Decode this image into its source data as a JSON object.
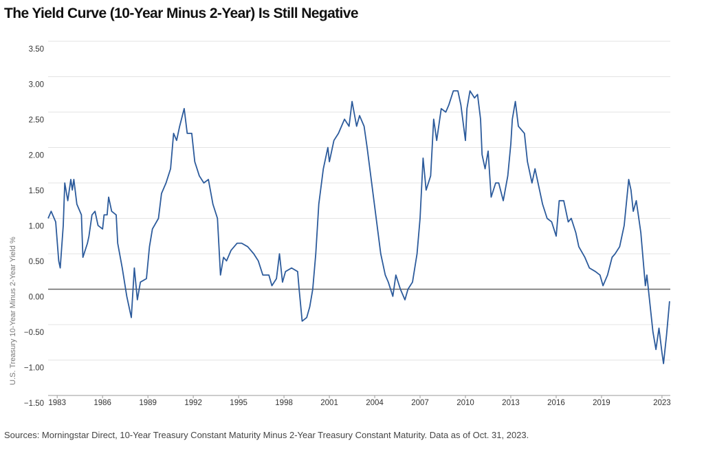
{
  "chart_data": {
    "type": "line",
    "title": "The Yield Curve (10-Year Minus 2-Year) Is Still Negative",
    "y_label": "U.S. Treasury 10-Year Minus 2-Year Yield %",
    "source": "Sources: Morningstar Direct, 10-Year Treasury Constant Maturity Minus 2-Year Treasury Constant Maturity. Data as of Oct. 31, 2023.",
    "xlim": [
      1982.4,
      2023.55
    ],
    "xticks": [
      1983,
      1986,
      1989,
      1992,
      1995,
      1998,
      2001,
      2004,
      2007,
      2010,
      2013,
      2016,
      2019,
      2023
    ],
    "ylim": [
      -1.5,
      3.5
    ],
    "yticks": [
      {
        "value": -1.5,
        "label": "−1.50"
      },
      {
        "value": -1,
        "label": "−1.00"
      },
      {
        "value": -0.5,
        "label": "−0.50"
      },
      {
        "value": 0,
        "label": "0.00"
      },
      {
        "value": 0.5,
        "label": "0.50"
      },
      {
        "value": 1,
        "label": "1.00"
      },
      {
        "value": 1.5,
        "label": "1.50"
      },
      {
        "value": 2,
        "label": "2.00"
      },
      {
        "value": 2.5,
        "label": "2.50"
      },
      {
        "value": 3,
        "label": "3.00"
      },
      {
        "value": 3.5,
        "label": "3.50"
      }
    ],
    "grid": true,
    "x": [
      1982.4,
      1982.6,
      1982.9,
      1983.1,
      1983.2,
      1983.4,
      1983.5,
      1983.7,
      1983.9,
      1984.0,
      1984.1,
      1984.3,
      1984.6,
      1984.7,
      1985.0,
      1985.1,
      1985.3,
      1985.5,
      1985.7,
      1986.0,
      1986.1,
      1986.3,
      1986.4,
      1986.6,
      1986.9,
      1987.0,
      1987.3,
      1987.6,
      1987.9,
      1988.1,
      1988.3,
      1988.5,
      1988.9,
      1989.1,
      1989.3,
      1989.7,
      1989.9,
      1990.2,
      1990.5,
      1990.7,
      1990.9,
      1991.1,
      1991.4,
      1991.6,
      1991.9,
      1992.1,
      1992.4,
      1992.7,
      1993.0,
      1993.3,
      1993.6,
      1993.8,
      1994.0,
      1994.2,
      1994.5,
      1994.9,
      1995.2,
      1995.6,
      1996.0,
      1996.3,
      1996.6,
      1997.0,
      1997.2,
      1997.5,
      1997.7,
      1997.9,
      1998.1,
      1998.5,
      1998.9,
      1999.0,
      1999.2,
      1999.5,
      1999.7,
      1999.9,
      2000.1,
      2000.3,
      2000.6,
      2000.9,
      2001.0,
      2001.3,
      2001.6,
      2001.8,
      2002.0,
      2002.3,
      2002.5,
      2002.8,
      2003.0,
      2003.3,
      2003.5,
      2003.8,
      2004.1,
      2004.4,
      2004.7,
      2004.9,
      2005.2,
      2005.4,
      2005.7,
      2006.0,
      2006.2,
      2006.5,
      2006.8,
      2007.0,
      2007.2,
      2007.4,
      2007.7,
      2007.9,
      2008.1,
      2008.4,
      2008.7,
      2008.9,
      2009.2,
      2009.5,
      2009.7,
      2010.0,
      2010.1,
      2010.3,
      2010.6,
      2010.8,
      2011.0,
      2011.1,
      2011.3,
      2011.5,
      2011.7,
      2012.0,
      2012.2,
      2012.5,
      2012.8,
      2013.0,
      2013.1,
      2013.3,
      2013.5,
      2013.9,
      2014.1,
      2014.4,
      2014.6,
      2014.9,
      2015.1,
      2015.4,
      2015.7,
      2016.0,
      2016.2,
      2016.5,
      2016.8,
      2017.0,
      2017.3,
      2017.5,
      2017.9,
      2018.2,
      2018.6,
      2018.9,
      2019.1,
      2019.4,
      2019.7,
      2019.9,
      2020.2,
      2020.5,
      2020.8,
      2020.95,
      2021.1,
      2021.3,
      2021.6,
      2021.9,
      2022.0,
      2022.2,
      2022.4,
      2022.6,
      2022.8,
      2023.0,
      2023.1,
      2023.3,
      2023.5
    ],
    "series": [
      {
        "color": "#2b5a9b",
        "values": [
          1.0,
          1.1,
          0.95,
          0.4,
          0.3,
          0.9,
          1.5,
          1.25,
          1.55,
          1.4,
          1.55,
          1.2,
          1.05,
          0.45,
          0.65,
          0.75,
          1.05,
          1.1,
          0.9,
          0.85,
          1.05,
          1.05,
          1.3,
          1.1,
          1.05,
          0.65,
          0.3,
          -0.1,
          -0.4,
          0.3,
          -0.15,
          0.1,
          0.15,
          0.6,
          0.85,
          1.0,
          1.35,
          1.5,
          1.7,
          2.2,
          2.1,
          2.3,
          2.55,
          2.2,
          2.2,
          1.8,
          1.6,
          1.5,
          1.55,
          1.2,
          1.0,
          0.2,
          0.45,
          0.4,
          0.55,
          0.65,
          0.65,
          0.6,
          0.5,
          0.4,
          0.2,
          0.2,
          0.05,
          0.15,
          0.5,
          0.1,
          0.25,
          0.3,
          0.25,
          0.0,
          -0.45,
          -0.4,
          -0.25,
          0.0,
          0.5,
          1.2,
          1.7,
          2.0,
          1.8,
          2.1,
          2.2,
          2.3,
          2.4,
          2.3,
          2.65,
          2.3,
          2.45,
          2.3,
          2.0,
          1.5,
          1.0,
          0.5,
          0.2,
          0.1,
          -0.1,
          0.2,
          0.0,
          -0.15,
          0.0,
          0.1,
          0.5,
          1.0,
          1.85,
          1.4,
          1.6,
          2.4,
          2.1,
          2.55,
          2.5,
          2.6,
          2.8,
          2.8,
          2.6,
          2.1,
          2.55,
          2.8,
          2.7,
          2.75,
          2.4,
          1.9,
          1.7,
          1.95,
          1.3,
          1.5,
          1.5,
          1.25,
          1.6,
          2.05,
          2.4,
          2.65,
          2.3,
          2.2,
          1.8,
          1.5,
          1.7,
          1.4,
          1.2,
          1.0,
          0.95,
          0.75,
          1.25,
          1.25,
          0.95,
          1.0,
          0.8,
          0.6,
          0.45,
          0.3,
          0.25,
          0.2,
          0.05,
          0.2,
          0.45,
          0.5,
          0.6,
          0.9,
          1.55,
          1.4,
          1.1,
          1.25,
          0.8,
          0.05,
          0.2,
          -0.2,
          -0.6,
          -0.85,
          -0.55,
          -0.9,
          -1.05,
          -0.65,
          -0.17
        ]
      }
    ]
  }
}
